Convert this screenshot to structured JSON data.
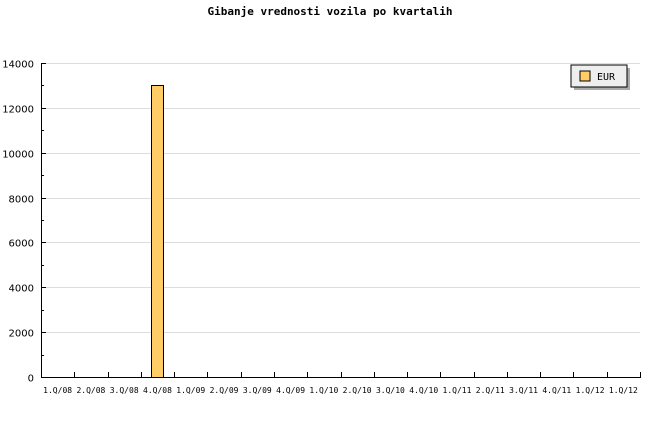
{
  "chart_data": {
    "type": "bar",
    "title": "Gibanje vrednosti vozila po kvartalih",
    "xlabel": "",
    "ylabel": "",
    "categories": [
      "1.Q/08",
      "2.Q/08",
      "3.Q/08",
      "4.Q/08",
      "1.Q/09",
      "2.Q/09",
      "3.Q/09",
      "4.Q/09",
      "1.Q/10",
      "2.Q/10",
      "3.Q/10",
      "4.Q/10",
      "1.Q/11",
      "2.Q/11",
      "3.Q/11",
      "4.Q/11",
      "1.Q/12",
      "1.Q/12"
    ],
    "series": [
      {
        "name": "EUR",
        "color": "#ffcc66",
        "values": [
          0,
          0,
          0,
          13000,
          0,
          0,
          0,
          0,
          0,
          0,
          0,
          0,
          0,
          0,
          0,
          0,
          0,
          0
        ]
      }
    ],
    "ylim": [
      0,
      14000
    ],
    "yticks": [
      0,
      2000,
      4000,
      6000,
      8000,
      10000,
      12000,
      14000
    ],
    "grid": true,
    "legend": "top-right"
  }
}
